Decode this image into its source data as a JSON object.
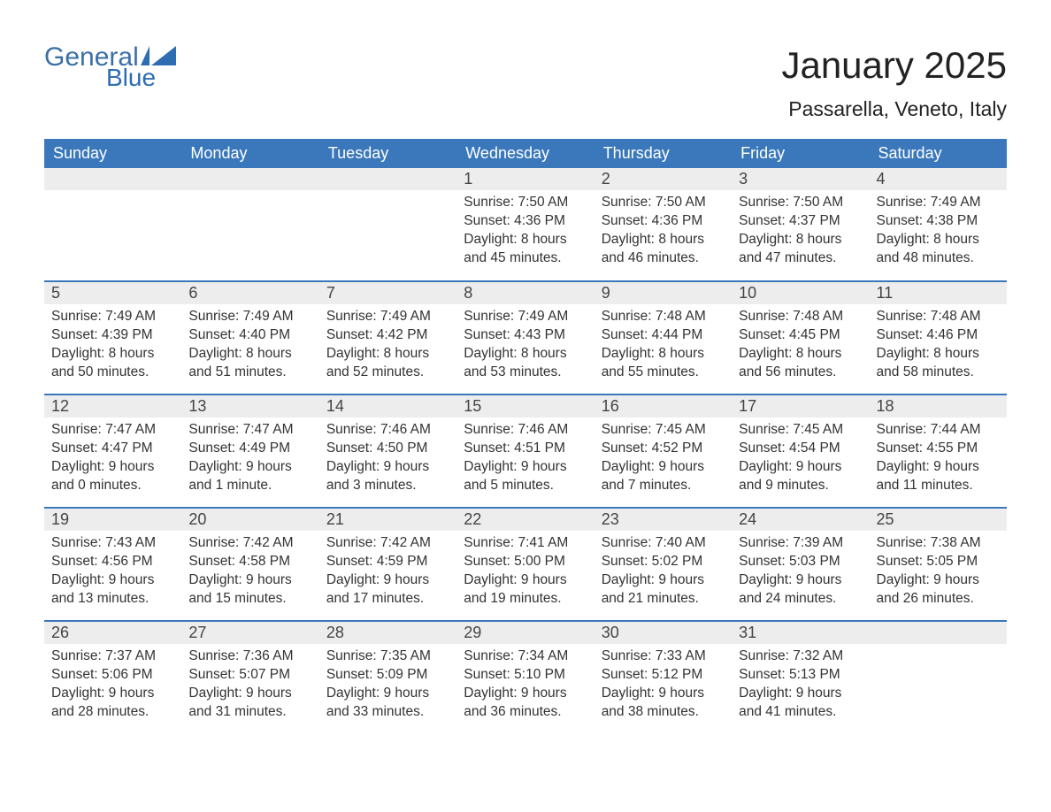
{
  "brand": {
    "line1": "General",
    "line2": "Blue",
    "logo_color": "#2f6db2"
  },
  "title": "January 2025",
  "location": "Passarella, Veneto, Italy",
  "colors": {
    "header_bg": "#3a78bb",
    "header_text": "#ffffff",
    "daynum_bg": "#ededed",
    "row_border": "#3a78bb",
    "body_text": "#333333",
    "page_bg": "#ffffff"
  },
  "fonts": {
    "title_size": 42,
    "location_size": 23,
    "dayheader_size": 18,
    "body_size": 15.5
  },
  "weekday_headers": [
    "Sunday",
    "Monday",
    "Tuesday",
    "Wednesday",
    "Thursday",
    "Friday",
    "Saturday"
  ],
  "labels": {
    "sunrise": "Sunrise:",
    "sunset": "Sunset:",
    "daylight": "Daylight:"
  },
  "weeks": [
    [
      {
        "day": null
      },
      {
        "day": null
      },
      {
        "day": null
      },
      {
        "day": 1,
        "sunrise": "7:50 AM",
        "sunset": "4:36 PM",
        "daylight": "8 hours and 45 minutes."
      },
      {
        "day": 2,
        "sunrise": "7:50 AM",
        "sunset": "4:36 PM",
        "daylight": "8 hours and 46 minutes."
      },
      {
        "day": 3,
        "sunrise": "7:50 AM",
        "sunset": "4:37 PM",
        "daylight": "8 hours and 47 minutes."
      },
      {
        "day": 4,
        "sunrise": "7:49 AM",
        "sunset": "4:38 PM",
        "daylight": "8 hours and 48 minutes."
      }
    ],
    [
      {
        "day": 5,
        "sunrise": "7:49 AM",
        "sunset": "4:39 PM",
        "daylight": "8 hours and 50 minutes."
      },
      {
        "day": 6,
        "sunrise": "7:49 AM",
        "sunset": "4:40 PM",
        "daylight": "8 hours and 51 minutes."
      },
      {
        "day": 7,
        "sunrise": "7:49 AM",
        "sunset": "4:42 PM",
        "daylight": "8 hours and 52 minutes."
      },
      {
        "day": 8,
        "sunrise": "7:49 AM",
        "sunset": "4:43 PM",
        "daylight": "8 hours and 53 minutes."
      },
      {
        "day": 9,
        "sunrise": "7:48 AM",
        "sunset": "4:44 PM",
        "daylight": "8 hours and 55 minutes."
      },
      {
        "day": 10,
        "sunrise": "7:48 AM",
        "sunset": "4:45 PM",
        "daylight": "8 hours and 56 minutes."
      },
      {
        "day": 11,
        "sunrise": "7:48 AM",
        "sunset": "4:46 PM",
        "daylight": "8 hours and 58 minutes."
      }
    ],
    [
      {
        "day": 12,
        "sunrise": "7:47 AM",
        "sunset": "4:47 PM",
        "daylight": "9 hours and 0 minutes."
      },
      {
        "day": 13,
        "sunrise": "7:47 AM",
        "sunset": "4:49 PM",
        "daylight": "9 hours and 1 minute."
      },
      {
        "day": 14,
        "sunrise": "7:46 AM",
        "sunset": "4:50 PM",
        "daylight": "9 hours and 3 minutes."
      },
      {
        "day": 15,
        "sunrise": "7:46 AM",
        "sunset": "4:51 PM",
        "daylight": "9 hours and 5 minutes."
      },
      {
        "day": 16,
        "sunrise": "7:45 AM",
        "sunset": "4:52 PM",
        "daylight": "9 hours and 7 minutes."
      },
      {
        "day": 17,
        "sunrise": "7:45 AM",
        "sunset": "4:54 PM",
        "daylight": "9 hours and 9 minutes."
      },
      {
        "day": 18,
        "sunrise": "7:44 AM",
        "sunset": "4:55 PM",
        "daylight": "9 hours and 11 minutes."
      }
    ],
    [
      {
        "day": 19,
        "sunrise": "7:43 AM",
        "sunset": "4:56 PM",
        "daylight": "9 hours and 13 minutes."
      },
      {
        "day": 20,
        "sunrise": "7:42 AM",
        "sunset": "4:58 PM",
        "daylight": "9 hours and 15 minutes."
      },
      {
        "day": 21,
        "sunrise": "7:42 AM",
        "sunset": "4:59 PM",
        "daylight": "9 hours and 17 minutes."
      },
      {
        "day": 22,
        "sunrise": "7:41 AM",
        "sunset": "5:00 PM",
        "daylight": "9 hours and 19 minutes."
      },
      {
        "day": 23,
        "sunrise": "7:40 AM",
        "sunset": "5:02 PM",
        "daylight": "9 hours and 21 minutes."
      },
      {
        "day": 24,
        "sunrise": "7:39 AM",
        "sunset": "5:03 PM",
        "daylight": "9 hours and 24 minutes."
      },
      {
        "day": 25,
        "sunrise": "7:38 AM",
        "sunset": "5:05 PM",
        "daylight": "9 hours and 26 minutes."
      }
    ],
    [
      {
        "day": 26,
        "sunrise": "7:37 AM",
        "sunset": "5:06 PM",
        "daylight": "9 hours and 28 minutes."
      },
      {
        "day": 27,
        "sunrise": "7:36 AM",
        "sunset": "5:07 PM",
        "daylight": "9 hours and 31 minutes."
      },
      {
        "day": 28,
        "sunrise": "7:35 AM",
        "sunset": "5:09 PM",
        "daylight": "9 hours and 33 minutes."
      },
      {
        "day": 29,
        "sunrise": "7:34 AM",
        "sunset": "5:10 PM",
        "daylight": "9 hours and 36 minutes."
      },
      {
        "day": 30,
        "sunrise": "7:33 AM",
        "sunset": "5:12 PM",
        "daylight": "9 hours and 38 minutes."
      },
      {
        "day": 31,
        "sunrise": "7:32 AM",
        "sunset": "5:13 PM",
        "daylight": "9 hours and 41 minutes."
      },
      {
        "day": null
      }
    ]
  ]
}
